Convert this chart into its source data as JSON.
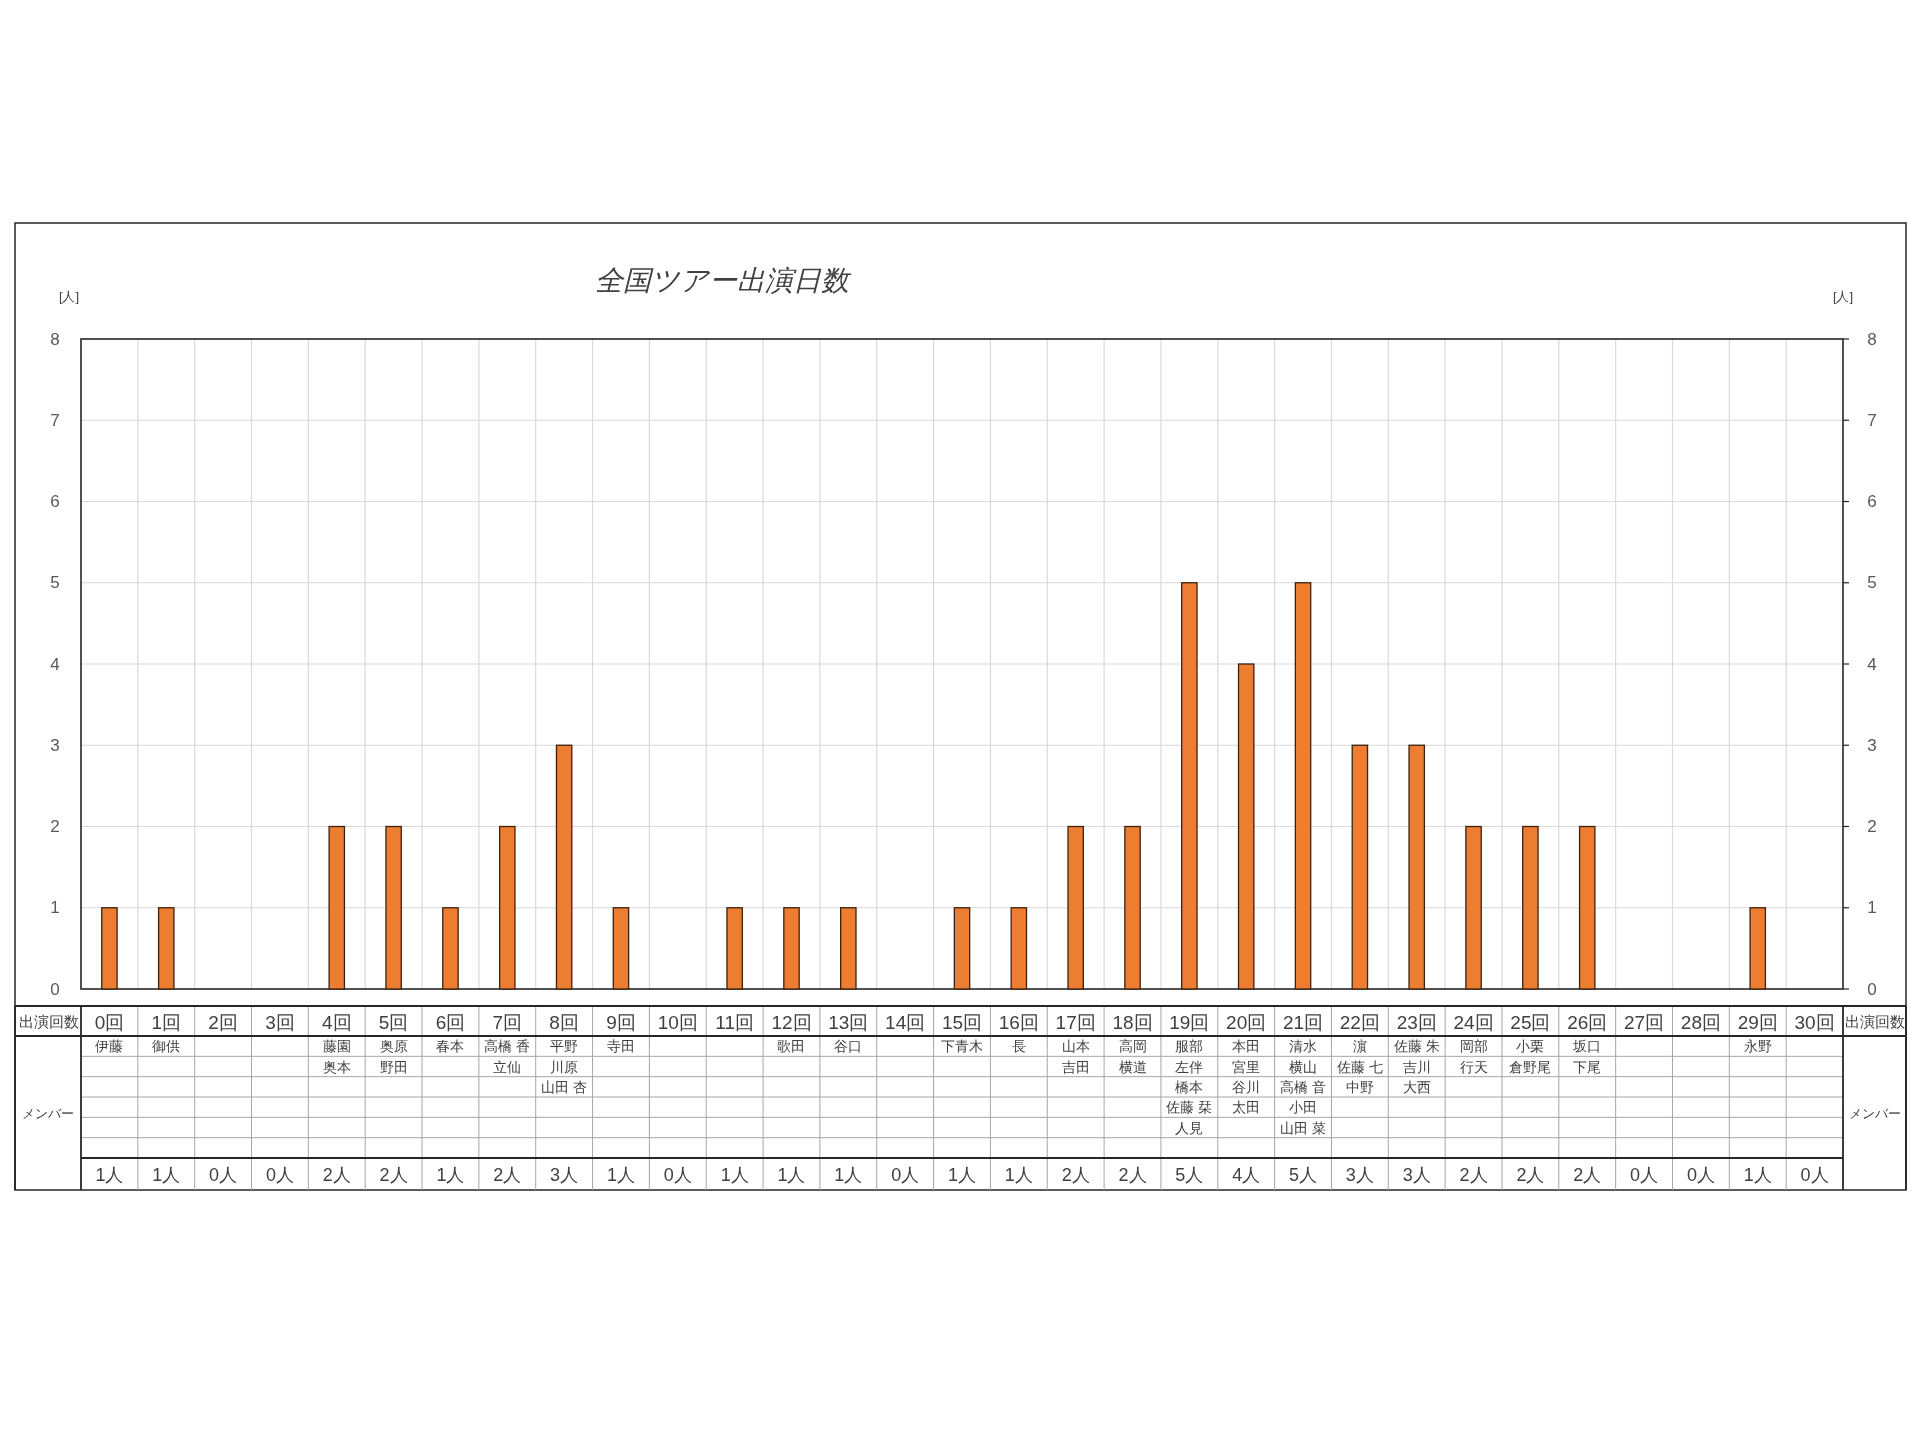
{
  "chart_data": {
    "type": "bar",
    "title": "全国ツアー出演日数",
    "xlabel": "出演回数",
    "ylabel": "[人]",
    "y2label": "[人]",
    "categories": [
      "0回",
      "1回",
      "2回",
      "3回",
      "4回",
      "5回",
      "6回",
      "7回",
      "8回",
      "9回",
      "10回",
      "11回",
      "12回",
      "13回",
      "14回",
      "15回",
      "16回",
      "17回",
      "18回",
      "19回",
      "20回",
      "21回",
      "22回",
      "23回",
      "24回",
      "25回",
      "26回",
      "27回",
      "28回",
      "29回",
      "30回"
    ],
    "values": [
      1,
      1,
      0,
      0,
      2,
      2,
      1,
      2,
      3,
      1,
      0,
      1,
      1,
      1,
      0,
      1,
      1,
      2,
      2,
      5,
      4,
      5,
      3,
      3,
      2,
      2,
      2,
      0,
      0,
      1,
      0
    ],
    "color": "#ed7d31",
    "ylim": [
      0,
      8
    ],
    "yticks": [
      0,
      1,
      2,
      3,
      4,
      5,
      6,
      7,
      8
    ],
    "y2lim": [
      0,
      8
    ],
    "y2ticks": [
      0,
      1,
      2,
      3,
      4,
      5,
      6,
      7,
      8
    ],
    "grid": true,
    "value_labels": [
      "1人",
      "1人",
      "0人",
      "0人",
      "2人",
      "2人",
      "1人",
      "2人",
      "3人",
      "1人",
      "0人",
      "1人",
      "1人",
      "1人",
      "0人",
      "1人",
      "1人",
      "2人",
      "2人",
      "5人",
      "4人",
      "5人",
      "3人",
      "3人",
      "2人",
      "2人",
      "2人",
      "0人",
      "0人",
      "1人",
      "0人"
    ],
    "annotations": [
      "メンバー",
      "伊藤",
      "御供",
      "藤園",
      "奥本",
      "奥原",
      "野田",
      "春本",
      "高橋 香",
      "立仙",
      "平野",
      "川原",
      "山田 杏",
      "寺田",
      "歌田",
      "谷口",
      "下青木",
      "長",
      "山本",
      "吉田",
      "高岡",
      "横道",
      "服部",
      "左伴",
      "橋本",
      "佐藤 栞",
      "人見",
      "本田",
      "宮里",
      "谷川",
      "太田",
      "清水",
      "横山",
      "高橋 音",
      "小田",
      "山田 菜",
      "濵",
      "佐藤 七",
      "中野",
      "佐藤 朱",
      "吉川",
      "大西",
      "岡部",
      "行天",
      "小栗",
      "倉野尾",
      "坂口",
      "下尾",
      "永野"
    ]
  }
}
